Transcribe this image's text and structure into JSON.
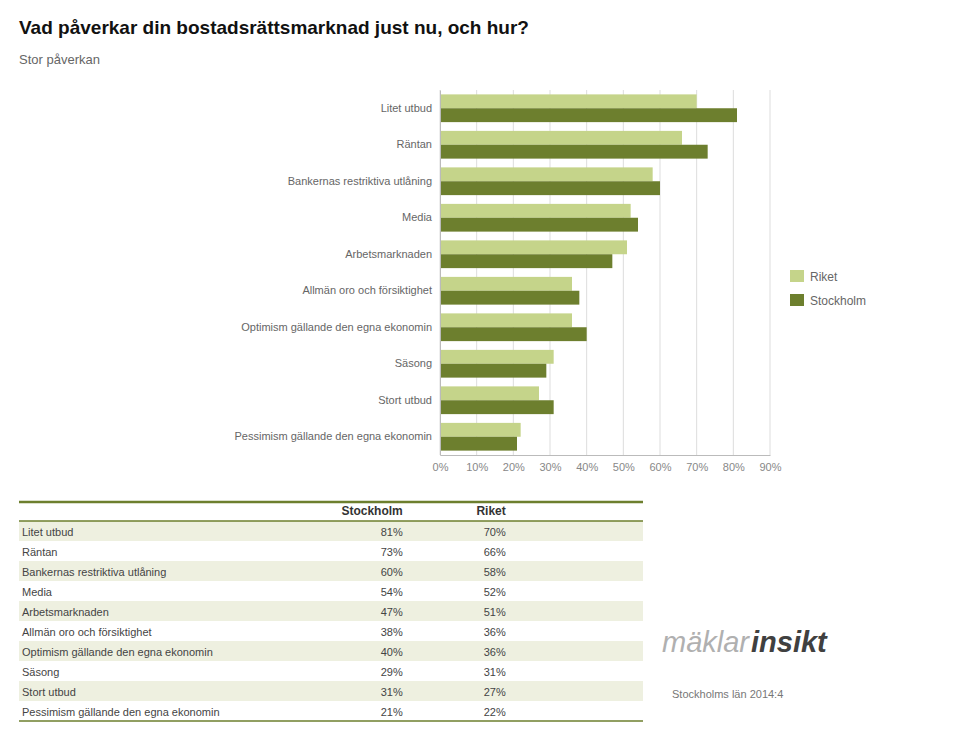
{
  "chart_data": {
    "type": "bar",
    "orientation": "horizontal",
    "title": "Vad påverkar din bostadsrättsmarknad just nu, och hur?",
    "subtitle": "Stor påverkan",
    "categories": [
      "Litet utbud",
      "Räntan",
      "Bankernas restriktiva utlåning",
      "Media",
      "Arbetsmarknaden",
      "Allmän oro och försiktighet",
      "Optimism gällande den egna ekonomin",
      "Säsong",
      "Stort utbud",
      "Pessimism gällande den egna ekonomin"
    ],
    "series": [
      {
        "name": "Riket",
        "color": "#c5d48a",
        "values": [
          0.7,
          0.66,
          0.58,
          0.52,
          0.51,
          0.36,
          0.36,
          0.31,
          0.27,
          0.22
        ],
        "value_labels": [
          "70%",
          "66%",
          "58%",
          "52%",
          "51%",
          "36%",
          "36%",
          "31%",
          "27%",
          "22%"
        ]
      },
      {
        "name": "Stockholm",
        "color": "#6d7f2e",
        "values": [
          0.81,
          0.73,
          0.6,
          0.54,
          0.47,
          0.38,
          0.4,
          0.29,
          0.31,
          0.21
        ],
        "value_labels": [
          "81%",
          "73%",
          "60%",
          "54%",
          "47%",
          "38%",
          "40%",
          "29%",
          "31%",
          "21%"
        ]
      }
    ],
    "xlim": [
      0,
      0.9
    ],
    "xticks": [
      {
        "value": 0.0,
        "label": "0%"
      },
      {
        "value": 0.1,
        "label": "10%"
      },
      {
        "value": 0.2,
        "label": "20%"
      },
      {
        "value": 0.3,
        "label": "30%"
      },
      {
        "value": 0.4,
        "label": "40%"
      },
      {
        "value": 0.5,
        "label": "50%"
      },
      {
        "value": 0.6,
        "label": "60%"
      },
      {
        "value": 0.7,
        "label": "70%"
      },
      {
        "value": 0.8,
        "label": "80%"
      },
      {
        "value": 0.9,
        "label": "90%"
      }
    ],
    "grid": true,
    "legend": "right",
    "annotations": [
      "mäklar",
      "insikt",
      "Stockholms län 2014:4"
    ]
  }
}
